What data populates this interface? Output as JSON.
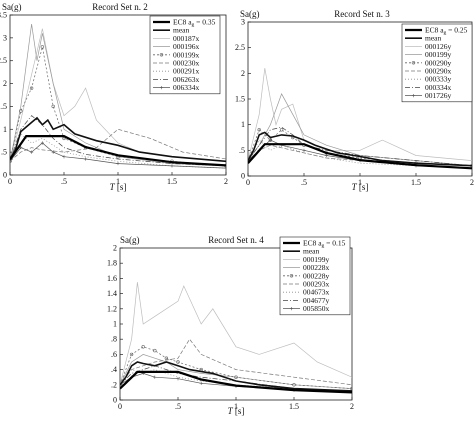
{
  "chart_data": [
    {
      "type": "line",
      "title": "Record Set n. 2",
      "ylabel": "Sa(g)",
      "xlabel_symbol": "T",
      "xlabel_unit": " [s]",
      "xlim": [
        0,
        2
      ],
      "ylim": [
        0,
        3.5
      ],
      "xticks": [
        0,
        0.5,
        1,
        1.5,
        2
      ],
      "yticks": [
        0,
        0.5,
        1,
        1.5,
        2,
        2.5,
        3,
        3.5
      ],
      "grid": false,
      "legend": "top-right",
      "legend_title": {
        "prefix": "EC8 a",
        "sub": "g",
        "suffix": " = 0.35"
      },
      "ec8": {
        "x": [
          0,
          0.15,
          0.5,
          0.7,
          1.0,
          1.5,
          2.0
        ],
        "y": [
          0.34,
          0.85,
          0.85,
          0.61,
          0.43,
          0.28,
          0.21
        ]
      },
      "mean": {
        "x": [
          0,
          0.05,
          0.1,
          0.15,
          0.2,
          0.25,
          0.3,
          0.35,
          0.4,
          0.5,
          0.6,
          0.8,
          1.0,
          1.2,
          1.5,
          2.0
        ],
        "y": [
          0.35,
          0.55,
          0.95,
          1.05,
          1.15,
          1.25,
          1.1,
          1.2,
          1.0,
          1.1,
          0.9,
          0.75,
          0.65,
          0.5,
          0.4,
          0.3
        ]
      },
      "series": [
        {
          "name": "000187x",
          "color": "#bdbdbd",
          "dash": "",
          "marker": "none",
          "x": [
            0,
            0.1,
            0.2,
            0.3,
            0.4,
            0.5,
            0.6,
            0.7,
            0.8,
            1.0,
            1.2,
            1.5,
            2.0
          ],
          "y": [
            0.3,
            1.2,
            2.2,
            3.2,
            2.0,
            1.3,
            1.5,
            1.9,
            1.2,
            0.7,
            0.5,
            0.4,
            0.3
          ]
        },
        {
          "name": "000196x",
          "color": "#9a9a9a",
          "dash": "",
          "marker": "none",
          "x": [
            0,
            0.1,
            0.2,
            0.25,
            0.3,
            0.4,
            0.5,
            0.7,
            1.0,
            1.5,
            2.0
          ],
          "y": [
            0.3,
            1.5,
            3.3,
            2.5,
            3.1,
            2.0,
            1.0,
            0.7,
            0.4,
            0.25,
            0.2
          ]
        },
        {
          "name": "000199x",
          "color": "#666666",
          "dash": "2 2",
          "marker": "circle",
          "x": [
            0,
            0.1,
            0.2,
            0.3,
            0.4,
            0.5,
            0.7,
            1.0,
            1.5,
            2.0
          ],
          "y": [
            0.3,
            1.4,
            1.9,
            2.8,
            1.5,
            0.8,
            0.6,
            0.4,
            0.3,
            0.2
          ]
        },
        {
          "name": "000230x",
          "color": "#777777",
          "dash": "4 2",
          "marker": "none",
          "x": [
            0,
            0.1,
            0.2,
            0.3,
            0.5,
            0.8,
            1.0,
            1.3,
            1.6,
            2.0
          ],
          "y": [
            0.3,
            0.5,
            0.6,
            0.55,
            0.5,
            0.6,
            1.0,
            0.8,
            0.5,
            0.35
          ]
        },
        {
          "name": "000291x",
          "color": "#8a8a8a",
          "dash": "1 2",
          "marker": "none",
          "x": [
            0,
            0.1,
            0.2,
            0.3,
            0.5,
            0.7,
            1.0,
            1.5,
            2.0
          ],
          "y": [
            0.3,
            0.9,
            0.7,
            0.8,
            0.5,
            0.4,
            0.3,
            0.2,
            0.15
          ]
        },
        {
          "name": "006263x",
          "color": "#444444",
          "dash": "5 2 1 2",
          "marker": "none",
          "x": [
            0,
            0.1,
            0.2,
            0.3,
            0.4,
            0.5,
            0.7,
            1.0,
            1.5,
            2.0
          ],
          "y": [
            0.3,
            1.0,
            1.3,
            1.1,
            0.8,
            0.6,
            0.45,
            0.35,
            0.25,
            0.2
          ]
        },
        {
          "name": "006334x",
          "color": "#555555",
          "dash": "",
          "marker": "plus",
          "x": [
            0,
            0.1,
            0.2,
            0.3,
            0.4,
            0.5,
            0.7,
            1.0,
            1.5,
            2.0
          ],
          "y": [
            0.3,
            0.6,
            0.5,
            0.7,
            0.5,
            0.4,
            0.35,
            0.25,
            0.2,
            0.15
          ]
        }
      ]
    },
    {
      "type": "line",
      "title": "Record Set n. 3",
      "ylabel": "Sa(g)",
      "xlabel_symbol": "T",
      "xlabel_unit": " [s]",
      "xlim": [
        0,
        2
      ],
      "ylim": [
        0,
        3
      ],
      "xticks": [
        0,
        0.5,
        1,
        1.5,
        2
      ],
      "yticks": [
        0,
        0.5,
        1,
        1.5,
        2,
        2.5,
        3
      ],
      "grid": false,
      "legend": "top-right",
      "legend_title": {
        "prefix": "EC8 a",
        "sub": "g",
        "suffix": " = 0.25"
      },
      "ec8": {
        "x": [
          0,
          0.15,
          0.5,
          0.7,
          1.0,
          1.5,
          2.0
        ],
        "y": [
          0.25,
          0.62,
          0.62,
          0.45,
          0.31,
          0.21,
          0.15
        ]
      },
      "mean": {
        "x": [
          0,
          0.05,
          0.1,
          0.15,
          0.2,
          0.3,
          0.4,
          0.5,
          0.6,
          0.8,
          1.0,
          1.2,
          1.5,
          2.0
        ],
        "y": [
          0.3,
          0.5,
          0.8,
          0.85,
          0.75,
          0.8,
          0.78,
          0.7,
          0.6,
          0.45,
          0.38,
          0.3,
          0.25,
          0.2
        ]
      },
      "series": [
        {
          "name": "000126y",
          "color": "#bdbdbd",
          "dash": "",
          "marker": "none",
          "x": [
            0,
            0.1,
            0.15,
            0.2,
            0.25,
            0.3,
            0.4,
            0.5,
            0.7,
            1.0,
            1.2,
            1.5,
            2.0
          ],
          "y": [
            0.3,
            1.2,
            2.1,
            1.5,
            1.0,
            1.3,
            1.4,
            0.7,
            0.5,
            0.5,
            0.7,
            0.4,
            0.3
          ]
        },
        {
          "name": "000199y",
          "color": "#9a9a9a",
          "dash": "",
          "marker": "none",
          "x": [
            0,
            0.1,
            0.2,
            0.3,
            0.4,
            0.5,
            0.7,
            1.0,
            1.5,
            2.0
          ],
          "y": [
            0.3,
            0.6,
            1.0,
            1.6,
            1.2,
            0.8,
            0.6,
            0.4,
            0.3,
            0.2
          ]
        },
        {
          "name": "000290y",
          "color": "#666666",
          "dash": "2 2",
          "marker": "circle",
          "x": [
            0,
            0.1,
            0.2,
            0.3,
            0.4,
            0.5,
            0.7,
            1.0,
            1.5,
            2.0
          ],
          "y": [
            0.3,
            0.9,
            0.7,
            0.9,
            0.75,
            0.6,
            0.45,
            0.35,
            0.25,
            0.2
          ]
        },
        {
          "name": "000290x",
          "color": "#777777",
          "dash": "4 2",
          "marker": "none",
          "x": [
            0,
            0.1,
            0.2,
            0.3,
            0.5,
            0.7,
            1.0,
            1.5,
            2.0
          ],
          "y": [
            0.3,
            0.5,
            0.6,
            0.55,
            0.45,
            0.35,
            0.3,
            0.2,
            0.15
          ]
        },
        {
          "name": "000333y",
          "color": "#8a8a8a",
          "dash": "1 2",
          "marker": "none",
          "x": [
            0,
            0.1,
            0.2,
            0.3,
            0.5,
            0.7,
            1.0,
            1.5,
            2.0
          ],
          "y": [
            0.3,
            0.7,
            0.5,
            0.6,
            0.45,
            0.35,
            0.25,
            0.2,
            0.15
          ]
        },
        {
          "name": "000334x",
          "color": "#444444",
          "dash": "5 2 1 2",
          "marker": "none",
          "x": [
            0,
            0.1,
            0.2,
            0.3,
            0.4,
            0.5,
            0.7,
            1.0,
            1.5,
            2.0
          ],
          "y": [
            0.3,
            0.6,
            0.9,
            0.95,
            0.8,
            0.6,
            0.5,
            0.4,
            0.3,
            0.2
          ]
        },
        {
          "name": "001726y",
          "color": "#555555",
          "dash": "",
          "marker": "plus",
          "x": [
            0,
            0.1,
            0.2,
            0.3,
            0.5,
            0.7,
            1.0,
            1.5,
            2.0
          ],
          "y": [
            0.3,
            0.5,
            0.7,
            0.6,
            0.5,
            0.4,
            0.3,
            0.2,
            0.15
          ]
        }
      ]
    },
    {
      "type": "line",
      "title": "Record Set n. 4",
      "ylabel": "Sa(g)",
      "xlabel_symbol": "T",
      "xlabel_unit": " [s]",
      "xlim": [
        0,
        2
      ],
      "ylim": [
        0,
        2
      ],
      "xticks": [
        0,
        0.5,
        1,
        1.5,
        2
      ],
      "yticks": [
        0,
        0.2,
        0.4,
        0.6,
        0.8,
        1,
        1.2,
        1.4,
        1.6,
        1.8,
        2
      ],
      "grid": false,
      "legend": "top-right",
      "legend_title": {
        "prefix": "EC8 a",
        "sub": "g",
        "suffix": " = 0.15"
      },
      "ec8": {
        "x": [
          0,
          0.15,
          0.5,
          0.7,
          1.0,
          1.5,
          2.0
        ],
        "y": [
          0.15,
          0.37,
          0.37,
          0.27,
          0.19,
          0.13,
          0.1
        ]
      },
      "mean": {
        "x": [
          0,
          0.05,
          0.1,
          0.15,
          0.2,
          0.3,
          0.4,
          0.5,
          0.6,
          0.8,
          1.0,
          1.2,
          1.5,
          2.0
        ],
        "y": [
          0.2,
          0.3,
          0.45,
          0.5,
          0.48,
          0.45,
          0.5,
          0.45,
          0.4,
          0.35,
          0.25,
          0.2,
          0.15,
          0.12
        ]
      },
      "series": [
        {
          "name": "000199y",
          "color": "#bdbdbd",
          "dash": "",
          "marker": "none",
          "x": [
            0,
            0.1,
            0.15,
            0.2,
            0.3,
            0.5,
            0.55,
            0.7,
            0.8,
            1.0,
            1.2,
            1.5,
            1.7,
            2.0
          ],
          "y": [
            0.2,
            0.8,
            1.55,
            1.0,
            1.1,
            1.3,
            1.5,
            1.0,
            1.2,
            0.7,
            0.6,
            0.75,
            0.5,
            0.3
          ]
        },
        {
          "name": "000228x",
          "color": "#9a9a9a",
          "dash": "",
          "marker": "none",
          "x": [
            0,
            0.1,
            0.2,
            0.3,
            0.4,
            0.5,
            0.7,
            1.0,
            1.5,
            2.0
          ],
          "y": [
            0.2,
            0.5,
            0.6,
            0.55,
            0.5,
            0.4,
            0.35,
            0.3,
            0.2,
            0.15
          ]
        },
        {
          "name": "000228y",
          "color": "#666666",
          "dash": "2 2",
          "marker": "circle",
          "x": [
            0,
            0.1,
            0.2,
            0.3,
            0.4,
            0.5,
            0.7,
            1.0,
            1.5,
            2.0
          ],
          "y": [
            0.2,
            0.6,
            0.7,
            0.65,
            0.55,
            0.5,
            0.4,
            0.3,
            0.2,
            0.15
          ]
        },
        {
          "name": "000293x",
          "color": "#777777",
          "dash": "4 2",
          "marker": "none",
          "x": [
            0,
            0.1,
            0.2,
            0.3,
            0.5,
            0.6,
            0.7,
            1.0,
            1.5,
            2.0
          ],
          "y": [
            0.2,
            0.4,
            0.45,
            0.5,
            0.55,
            0.8,
            0.6,
            0.4,
            0.3,
            0.2
          ]
        },
        {
          "name": "004673x",
          "color": "#8a8a8a",
          "dash": "1 2",
          "marker": "none",
          "x": [
            0,
            0.1,
            0.2,
            0.3,
            0.5,
            0.7,
            1.0,
            1.5,
            2.0
          ],
          "y": [
            0.2,
            0.4,
            0.35,
            0.4,
            0.3,
            0.25,
            0.2,
            0.15,
            0.1
          ]
        },
        {
          "name": "004677y",
          "color": "#444444",
          "dash": "5 2 1 2",
          "marker": "none",
          "x": [
            0,
            0.1,
            0.2,
            0.3,
            0.5,
            0.7,
            1.0,
            1.5,
            2.0
          ],
          "y": [
            0.2,
            0.35,
            0.4,
            0.45,
            0.35,
            0.3,
            0.25,
            0.15,
            0.12
          ]
        },
        {
          "name": "005850x",
          "color": "#555555",
          "dash": "",
          "marker": "plus",
          "x": [
            0,
            0.1,
            0.2,
            0.3,
            0.5,
            0.7,
            1.0,
            1.5,
            2.0
          ],
          "y": [
            0.2,
            0.3,
            0.35,
            0.3,
            0.28,
            0.22,
            0.18,
            0.13,
            0.1
          ]
        }
      ]
    }
  ]
}
